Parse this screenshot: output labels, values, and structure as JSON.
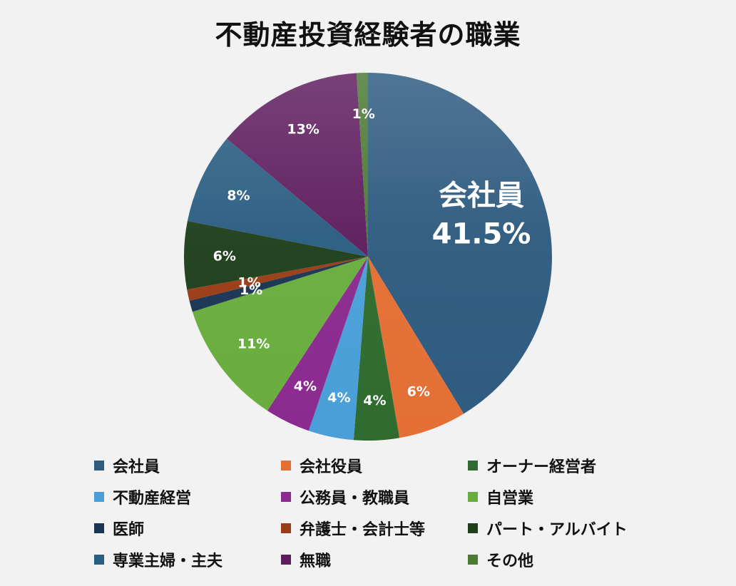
{
  "chart_data": {
    "type": "pie",
    "title": "不動産投資経験者の職業",
    "slices": [
      {
        "label": "会社員",
        "value": 41.5,
        "display": "41.5%",
        "color": "#2e5b80"
      },
      {
        "label": "会社役員",
        "value": 6,
        "display": "6%",
        "color": "#e36f35"
      },
      {
        "label": "オーナー経営者",
        "value": 4,
        "display": "4%",
        "color": "#2f6b2f"
      },
      {
        "label": "不動産経営",
        "value": 4,
        "display": "4%",
        "color": "#4a9fd8"
      },
      {
        "label": "公務員・教職員",
        "value": 4,
        "display": "4%",
        "color": "#8b2a8f"
      },
      {
        "label": "自営業",
        "value": 11,
        "display": "11%",
        "color": "#69ad3e"
      },
      {
        "label": "医師",
        "value": 1,
        "display": "1%",
        "color": "#1a3553"
      },
      {
        "label": "弁護士・会計士等",
        "value": 1,
        "display": "1%",
        "color": "#9a3d16"
      },
      {
        "label": "パート・アルバイト",
        "value": 6,
        "display": "6%",
        "color": "#1f3f1c"
      },
      {
        "label": "専業主婦・主夫",
        "value": 8,
        "display": "8%",
        "color": "#2a5d82"
      },
      {
        "label": "無職",
        "value": 13,
        "display": "13%",
        "color": "#5e1d5e"
      },
      {
        "label": "その他",
        "value": 1,
        "display": "1%",
        "color": "#4a7a33"
      }
    ],
    "legend_position": "bottom"
  }
}
